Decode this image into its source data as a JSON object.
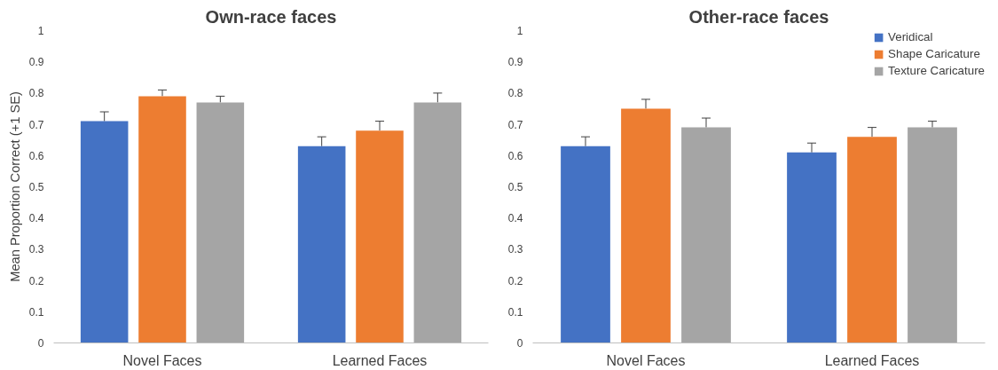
{
  "chart_data": [
    {
      "type": "bar",
      "title": "Own-race faces",
      "ylabel": "Mean Proportion Correct (+1 SE)",
      "categories": [
        "Novel Faces",
        "Learned Faces"
      ],
      "ylim": [
        0,
        1
      ],
      "yticks": [
        0,
        0.1,
        0.2,
        0.3,
        0.4,
        0.5,
        0.6,
        0.7,
        0.8,
        0.9,
        1
      ],
      "grid": false,
      "series": [
        {
          "color": "#4472c4",
          "values": [
            0.71,
            0.63
          ],
          "errors": [
            [
              0.71,
              0.74
            ],
            [
              0.63,
              0.66
            ]
          ]
        },
        {
          "color": "#ed7d31",
          "values": [
            0.79,
            0.68
          ],
          "errors": [
            [
              0.79,
              0.81
            ],
            [
              0.68,
              0.71
            ]
          ]
        },
        {
          "color": "#a5a5a5",
          "values": [
            0.77,
            0.77
          ],
          "errors": [
            [
              0.77,
              0.79
            ],
            [
              0.77,
              0.8
            ]
          ]
        }
      ]
    },
    {
      "type": "bar",
      "title": "Other-race faces",
      "categories": [
        "Novel Faces",
        "Learned Faces"
      ],
      "ylim": [
        0,
        1
      ],
      "yticks": [
        0,
        0.1,
        0.2,
        0.3,
        0.4,
        0.5,
        0.6,
        0.7,
        0.8,
        0.9,
        1
      ],
      "grid": false,
      "legend": "top right",
      "series": [
        {
          "name": "Veridical",
          "color": "#4472c4",
          "values": [
            0.63,
            0.61
          ],
          "errors": [
            [
              0.63,
              0.66
            ],
            [
              0.61,
              0.64
            ]
          ]
        },
        {
          "name": "Shape Caricature",
          "color": "#ed7d31",
          "values": [
            0.75,
            0.66
          ],
          "errors": [
            [
              0.75,
              0.78
            ],
            [
              0.66,
              0.69
            ]
          ]
        },
        {
          "name": "Texture Caricature",
          "color": "#a5a5a5",
          "values": [
            0.69,
            0.69
          ],
          "errors": [
            [
              0.69,
              0.72
            ],
            [
              0.69,
              0.71
            ]
          ]
        }
      ]
    }
  ]
}
